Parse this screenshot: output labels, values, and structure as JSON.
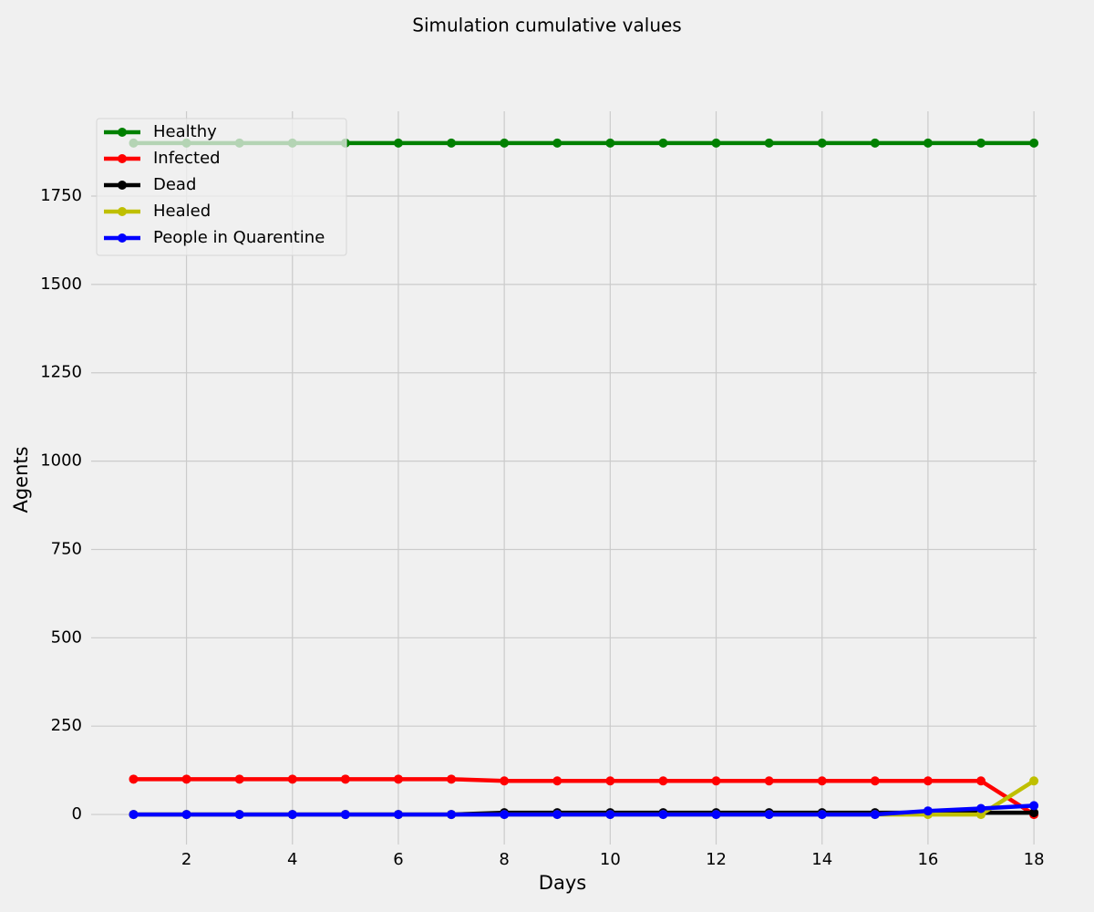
{
  "chart_data": {
    "type": "line",
    "title": "Simulation cumulative values",
    "x_label": "Days",
    "y_label": "Agents",
    "x": [
      1,
      2,
      3,
      4,
      5,
      6,
      7,
      8,
      9,
      10,
      11,
      12,
      13,
      14,
      15,
      16,
      17,
      18
    ],
    "series": [
      {
        "name": "Healthy",
        "color": "#008000",
        "values": [
          1900,
          1900,
          1900,
          1900,
          1900,
          1900,
          1900,
          1900,
          1900,
          1900,
          1900,
          1900,
          1900,
          1900,
          1900,
          1900,
          1900,
          1900
        ]
      },
      {
        "name": "Infected",
        "color": "#ff0000",
        "values": [
          100,
          100,
          100,
          100,
          100,
          100,
          100,
          95,
          95,
          95,
          95,
          95,
          95,
          95,
          95,
          95,
          95,
          0
        ]
      },
      {
        "name": "Dead",
        "color": "#000000",
        "values": [
          0,
          0,
          0,
          0,
          0,
          0,
          0,
          5,
          5,
          5,
          5,
          5,
          5,
          5,
          5,
          5,
          5,
          5
        ]
      },
      {
        "name": "Healed",
        "color": "#bfbf00",
        "values": [
          0,
          0,
          0,
          0,
          0,
          0,
          0,
          0,
          0,
          0,
          0,
          0,
          0,
          0,
          0,
          0,
          0,
          95
        ]
      },
      {
        "name": "People in Quarentine",
        "color": "#0000ff",
        "values": [
          0,
          0,
          0,
          0,
          0,
          0,
          0,
          0,
          0,
          0,
          0,
          0,
          0,
          0,
          0,
          10,
          17,
          25
        ]
      }
    ],
    "xlim": [
      0.2,
      18.05
    ],
    "xticks": [
      2,
      4,
      6,
      8,
      10,
      12,
      14,
      16,
      18
    ],
    "ylim": [
      -85,
      1990
    ],
    "yticks": [
      0,
      250,
      500,
      750,
      1000,
      1250,
      1500,
      1750
    ],
    "grid": true,
    "legend": "upper left"
  }
}
